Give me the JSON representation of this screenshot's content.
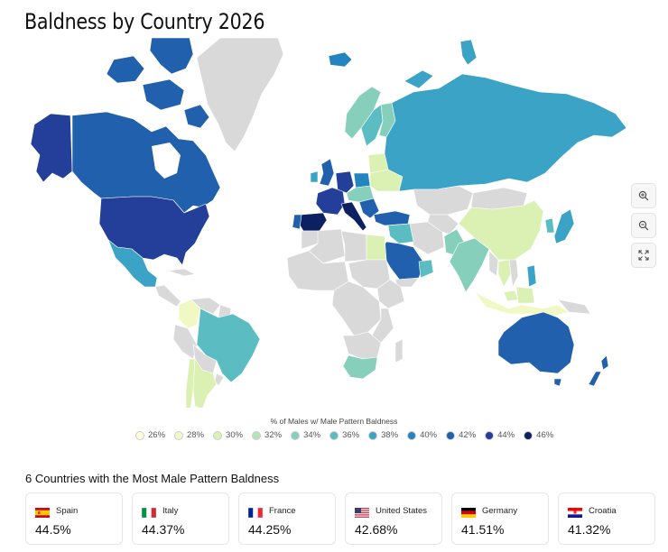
{
  "title": "Baldness by Country 2026",
  "legend": {
    "title": "% of Males w/ Male Pattern Baldness",
    "items": [
      {
        "label": "26%",
        "color": "#ffffd9"
      },
      {
        "label": "28%",
        "color": "#f0f9c3"
      },
      {
        "label": "30%",
        "color": "#dbf1b4"
      },
      {
        "label": "32%",
        "color": "#b6e3b6"
      },
      {
        "label": "34%",
        "color": "#85cfbb"
      },
      {
        "label": "36%",
        "color": "#5bbdc2"
      },
      {
        "label": "38%",
        "color": "#3aa3c6"
      },
      {
        "label": "40%",
        "color": "#2484bf"
      },
      {
        "label": "42%",
        "color": "#2160ad"
      },
      {
        "label": "44%",
        "color": "#233f99"
      },
      {
        "label": "46%",
        "color": "#0c2162"
      }
    ]
  },
  "map_colors": {
    "no_data": "#d9d9d9",
    "border": "#ffffff"
  },
  "zoom": {
    "zoom_in_icon": "zoom-in-icon",
    "zoom_out_icon": "zoom-out-icon",
    "fullscreen_icon": "expand-icon"
  },
  "top_countries": {
    "title": "6 Countries with the Most Male Pattern Baldness",
    "items": [
      {
        "name": "Spain",
        "value": "44.5%",
        "flag": "spain-flag"
      },
      {
        "name": "Italy",
        "value": "44.37%",
        "flag": "italy-flag"
      },
      {
        "name": "France",
        "value": "44.25%",
        "flag": "france-flag"
      },
      {
        "name": "United States",
        "value": "42.68%",
        "flag": "us-flag"
      },
      {
        "name": "Germany",
        "value": "41.51%",
        "flag": "germany-flag"
      },
      {
        "name": "Croatia",
        "value": "41.32%",
        "flag": "croatia-flag"
      }
    ]
  }
}
